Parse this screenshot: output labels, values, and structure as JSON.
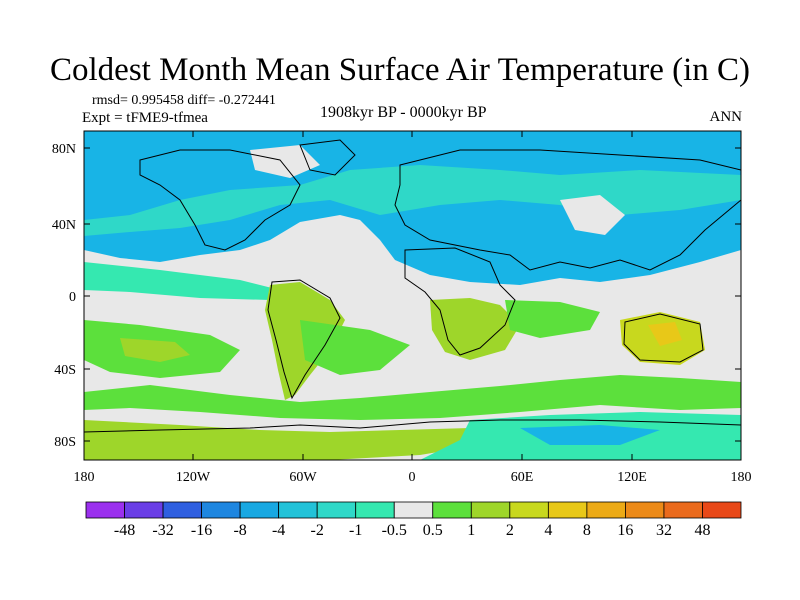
{
  "title": "Coldest Month Mean Surface Air Temperature (in C)",
  "stats": "rmsd= 0.995458 diff= -0.272441",
  "experiment": "Expt = tFME9-tfmea",
  "period": "1908kyr BP - 0000kyr BP",
  "season": "ANN",
  "map": {
    "x_ticks": [
      "180",
      "120W",
      "60W",
      "0",
      "60E",
      "120E",
      "180"
    ],
    "y_ticks": [
      "80N",
      "40N",
      "0",
      "40S",
      "80S"
    ]
  },
  "colorbar": {
    "colors": [
      "#9b30ee",
      "#6a3ee6",
      "#2f5fe0",
      "#1e86e0",
      "#18a8e2",
      "#22c2d8",
      "#2fd8c8",
      "#35e8b0",
      "#e8e8e8",
      "#5ce03c",
      "#9ed62a",
      "#c8d81e",
      "#e8c818",
      "#ecaa16",
      "#ec8a18",
      "#ea6a1c",
      "#e84818"
    ],
    "labels": [
      "-48",
      "-32",
      "-16",
      "-8",
      "-4",
      "-2",
      "-1",
      "-0.5",
      "0.5",
      "1",
      "2",
      "4",
      "8",
      "16",
      "32",
      "48"
    ]
  }
}
